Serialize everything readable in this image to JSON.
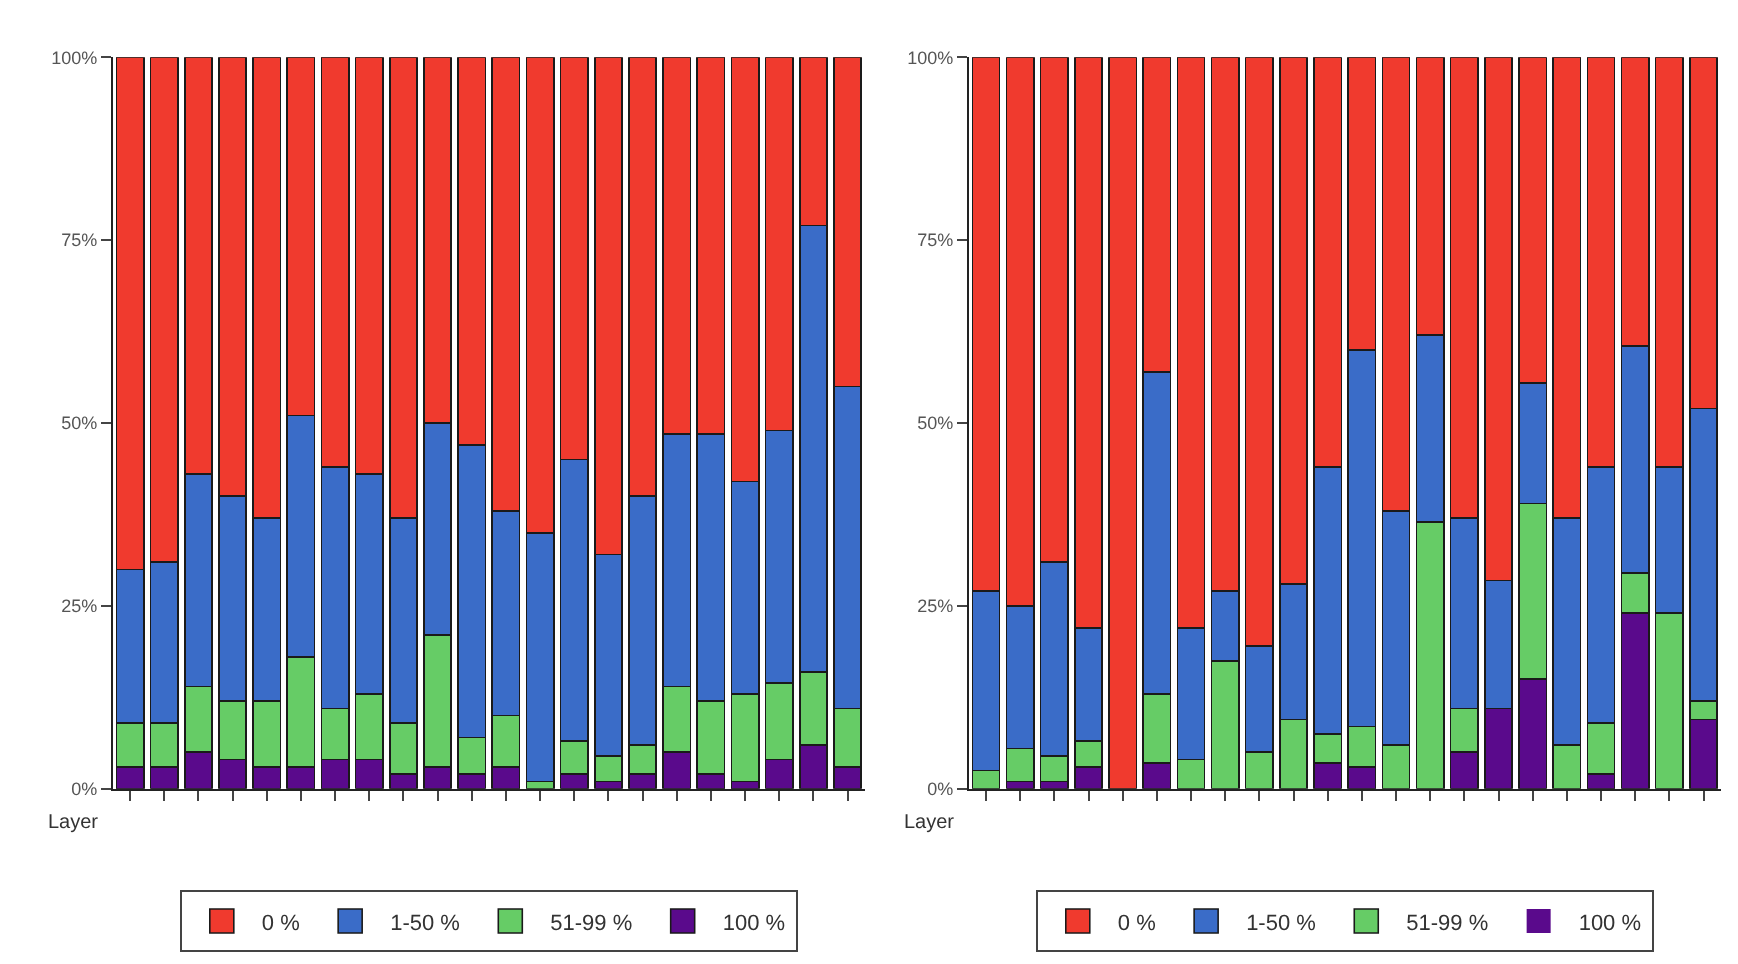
{
  "chart_data": [
    {
      "type": "bar",
      "stacked": true,
      "xlabel": "Layer",
      "legend": "bottom",
      "categories": [
        null,
        null,
        null,
        null,
        null,
        null,
        null,
        null,
        null,
        null,
        null,
        null,
        null,
        null,
        null,
        null,
        null,
        null,
        null,
        null,
        null,
        null
      ],
      "ylim": [
        0,
        100
      ],
      "yticks": [
        {
          "value": 0,
          "label": "0%"
        },
        {
          "value": 25,
          "label": "25%"
        },
        {
          "value": 50,
          "label": "50%"
        },
        {
          "value": 75,
          "label": "75%"
        },
        {
          "value": 100,
          "label": "100%"
        }
      ],
      "series": [
        {
          "name": "100 %",
          "color": "#5a0a8c",
          "values": [
            3,
            3,
            5,
            4,
            3,
            3,
            4,
            4,
            2,
            3,
            2,
            3,
            0,
            2,
            1,
            2,
            5,
            2,
            1,
            4,
            6,
            3
          ]
        },
        {
          "name": "51-99 %",
          "color": "#66cc66",
          "values": [
            6,
            6,
            9,
            8,
            9,
            15,
            7,
            9,
            7,
            18,
            5,
            7,
            1,
            4.5,
            3.5,
            4,
            9,
            10,
            12,
            10.5,
            10,
            8
          ]
        },
        {
          "name": "1-50 %",
          "color": "#3a6cc8",
          "values": [
            21,
            22,
            29,
            28,
            25,
            33,
            33,
            30,
            28,
            29,
            40,
            28,
            34,
            38.5,
            27.5,
            34,
            34.5,
            36.5,
            29,
            34.5,
            61,
            44
          ]
        },
        {
          "name": "0 %",
          "color": "#f03a2e",
          "values": [
            70,
            69,
            57,
            60,
            63,
            49,
            56,
            57,
            63,
            50,
            53,
            62,
            65,
            55,
            68,
            60,
            51.5,
            51.5,
            58,
            51,
            23,
            45
          ]
        }
      ]
    },
    {
      "type": "bar",
      "stacked": true,
      "xlabel": "Layer",
      "legend": "bottom",
      "categories": [
        null,
        null,
        null,
        null,
        null,
        null,
        null,
        null,
        null,
        null,
        null,
        null,
        null,
        null,
        null,
        null,
        null,
        null,
        null,
        null,
        null,
        null
      ],
      "ylim": [
        0,
        100
      ],
      "yticks": [
        {
          "value": 0,
          "label": "0%"
        },
        {
          "value": 25,
          "label": "25%"
        },
        {
          "value": 50,
          "label": "50%"
        },
        {
          "value": 75,
          "label": "75%"
        },
        {
          "value": 100,
          "label": "100%"
        }
      ],
      "series": [
        {
          "name": "100 %",
          "color": "#5a0a8c",
          "values": [
            0,
            1,
            1,
            3,
            0,
            3.5,
            0,
            0,
            0,
            0,
            3.5,
            3,
            0,
            0,
            5,
            11,
            15,
            0,
            2,
            24,
            0,
            9.5
          ]
        },
        {
          "name": "51-99 %",
          "color": "#66cc66",
          "values": [
            2.5,
            4.5,
            3.5,
            3.5,
            0,
            9.5,
            4,
            17.5,
            5,
            9.5,
            4,
            5.5,
            6,
            36.5,
            6,
            0,
            24,
            6,
            7,
            5.5,
            24,
            2.5
          ]
        },
        {
          "name": "1-50 %",
          "color": "#3a6cc8",
          "values": [
            24.5,
            19.5,
            26.5,
            15.5,
            0,
            44,
            18,
            9.5,
            14.5,
            18.5,
            36.5,
            51.5,
            32,
            25.5,
            26,
            17.5,
            16.5,
            31,
            35,
            31,
            20,
            40
          ]
        },
        {
          "name": "0 %",
          "color": "#f03a2e",
          "values": [
            73,
            75,
            69,
            78,
            100,
            43,
            78,
            73,
            80.5,
            72,
            56,
            40,
            62,
            38,
            63,
            71.5,
            44.5,
            63,
            56,
            39.5,
            56,
            48
          ]
        }
      ]
    }
  ]
}
